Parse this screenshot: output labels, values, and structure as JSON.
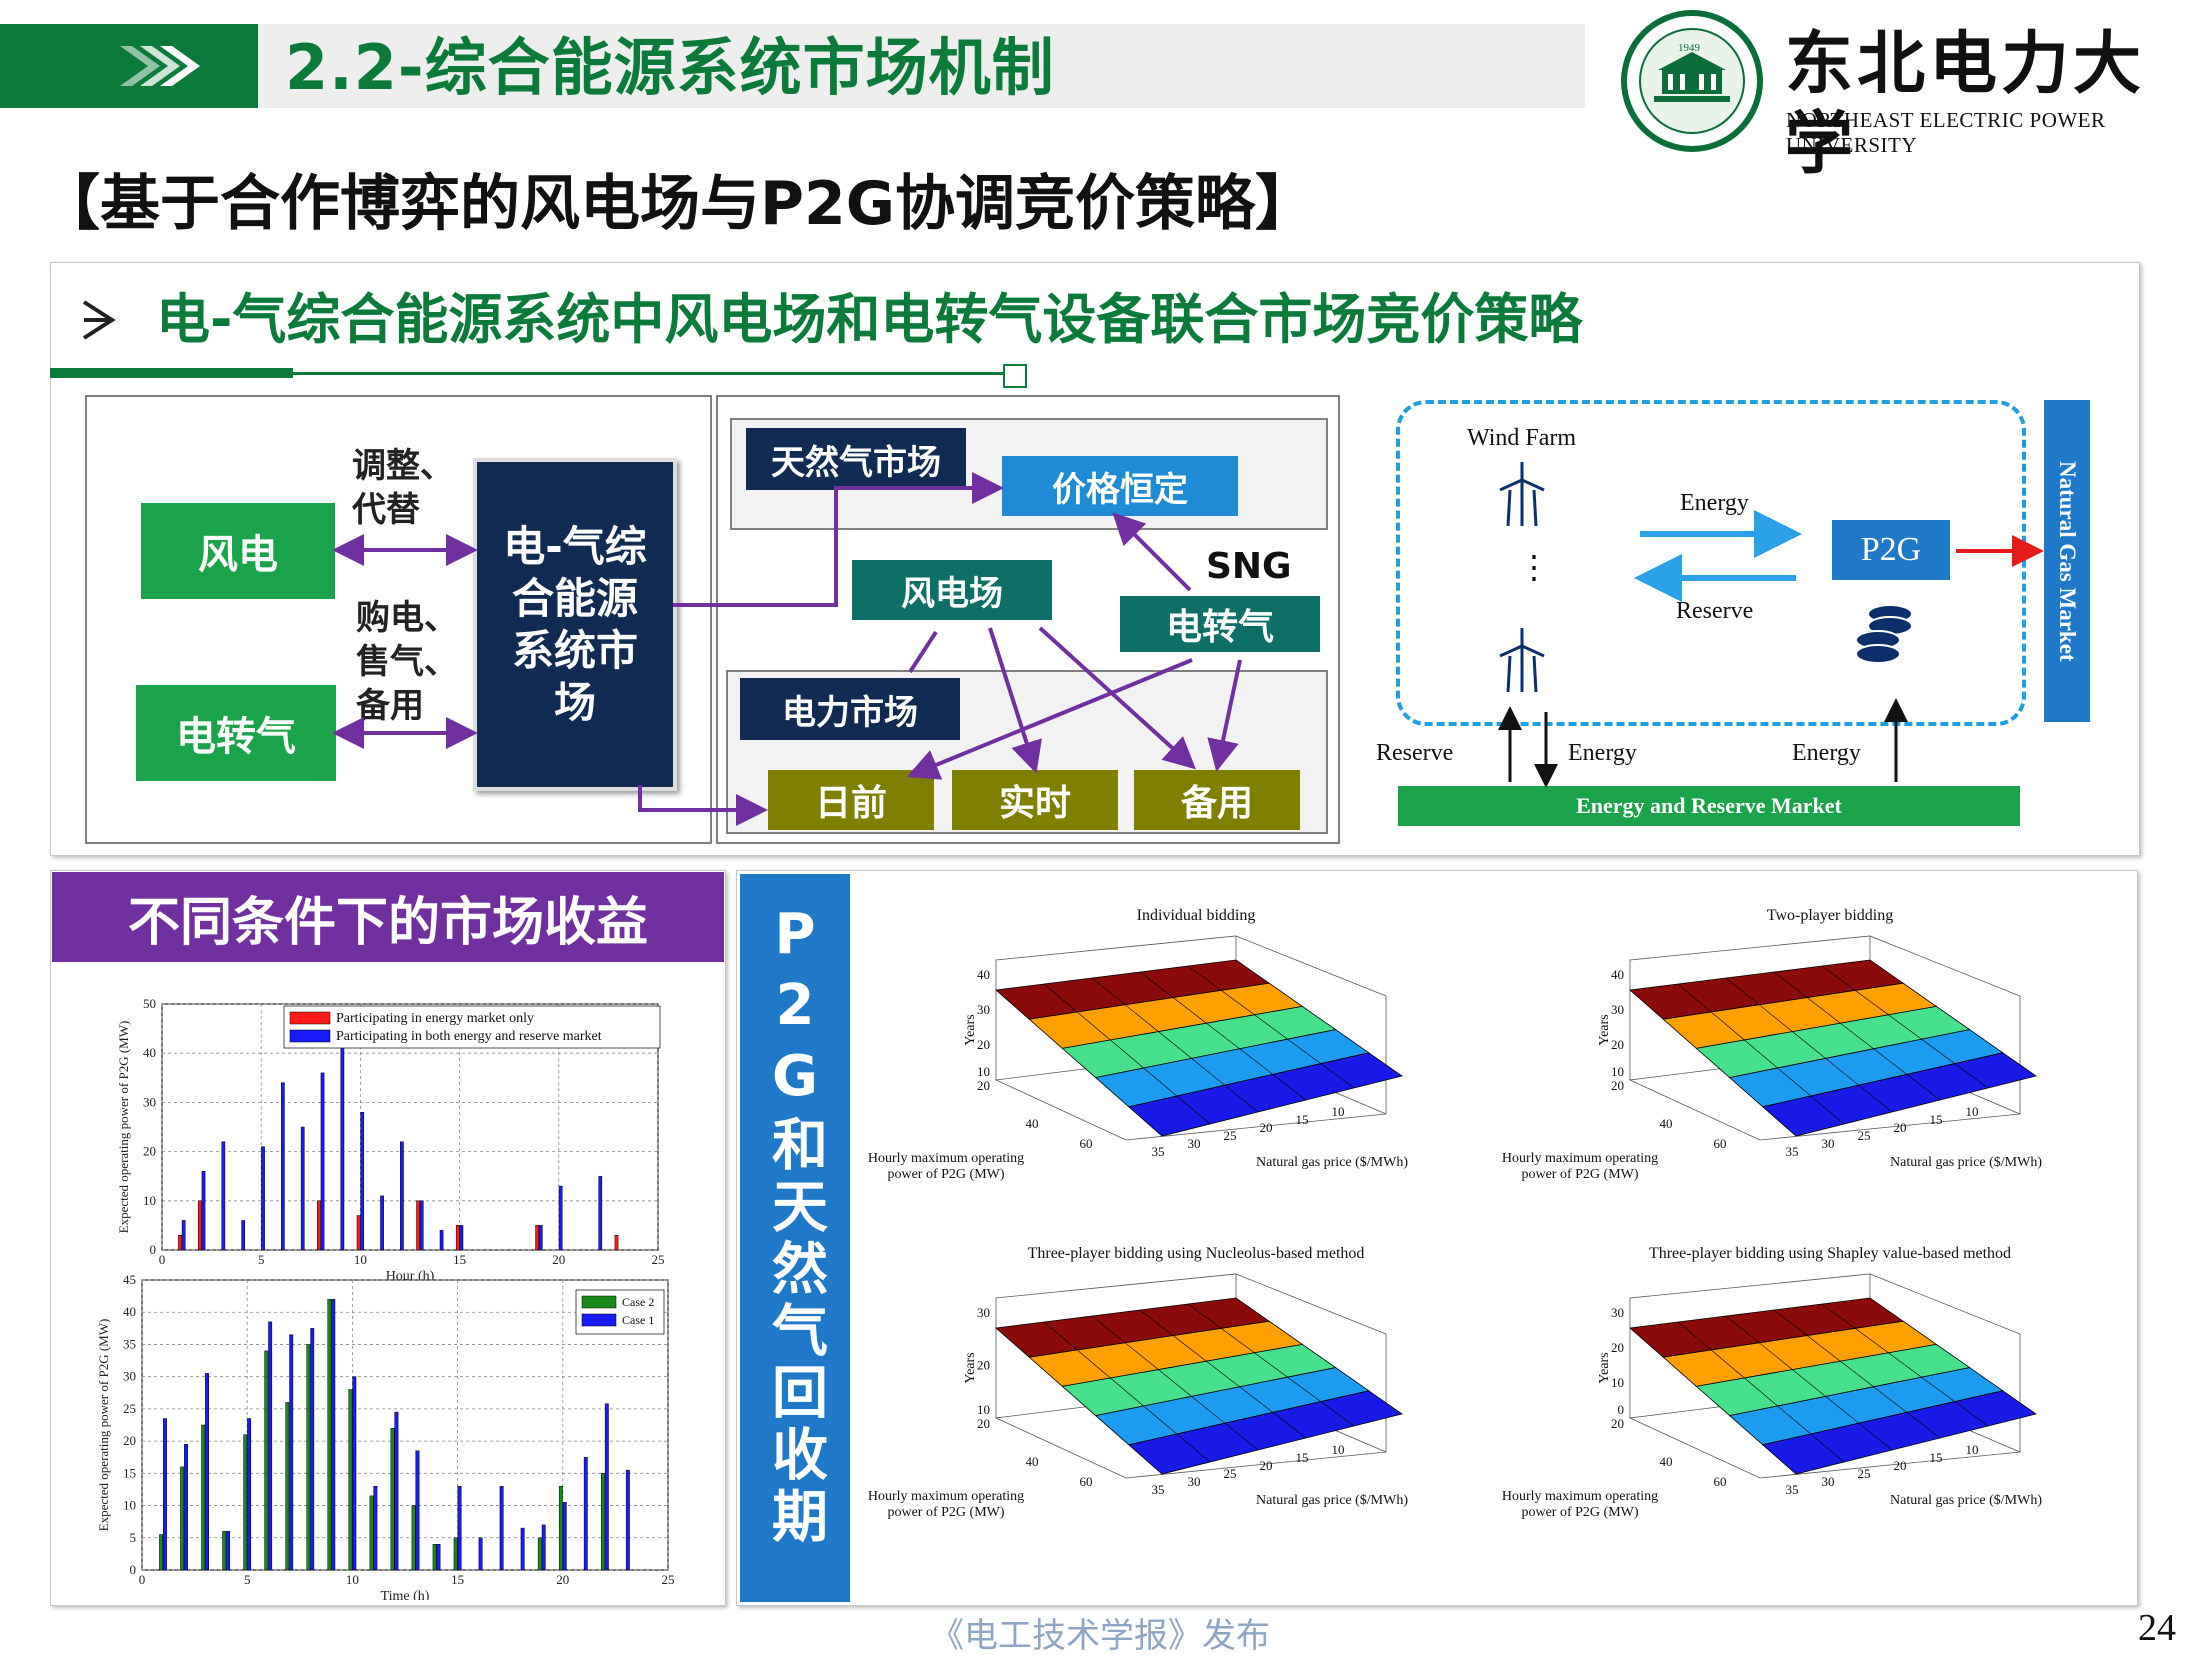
{
  "header": {
    "title": "2.2-综合能源系统市场机制",
    "university_cn": "东北电力大学",
    "university_en": "NORTHEAST ELECTRIC POWER UNIVERSITY",
    "seal_year": "1949",
    "brand_green": "#0a7a3c"
  },
  "subtitle": "【基于合作博弈的风电场与P2G协调竞价策略】",
  "section": {
    "heading": "电-气综合能源系统中风电场和电转气设备联合市场竞价策略",
    "left_diagram": {
      "wind": "风电",
      "p2g": "电转气",
      "label_top": [
        "调整、",
        "代替"
      ],
      "label_bottom": [
        "购电、",
        "售气、",
        "备用"
      ],
      "core": [
        "电-气综",
        "合能源",
        "系统市",
        "场"
      ]
    },
    "mid_diagram": {
      "gas_market": "天然气市场",
      "price_fixed": "价格恒定",
      "wind_farm": "风电场",
      "sng": "SNG",
      "p2g": "电转气",
      "power_market": "电力市场",
      "day_ahead": "日前",
      "real_time": "实时",
      "reserve": "备用"
    },
    "right_diagram": {
      "wind_farm": "Wind Farm",
      "energy": "Energy",
      "reserve": "Reserve",
      "p2g": "P2G",
      "gas_market": "Natural Gas Market",
      "bottom_reserve": "Reserve",
      "bottom_energy1": "Energy",
      "bottom_energy2": "Energy",
      "market": "Energy and Reserve Market",
      "dots": "⋮"
    }
  },
  "revenue_panel": {
    "title": "不同条件下的市场收益"
  },
  "p2g_panel": {
    "title": "P2G和天然气回收期"
  },
  "chart_data": [
    {
      "type": "bar",
      "ylabel": "Expected operating power of P2G (MW)",
      "xlabel": "Hour (h)",
      "xlim": [
        0,
        25
      ],
      "ylim": [
        0,
        50
      ],
      "xticks": [
        "0",
        "5",
        "10",
        "15",
        "20",
        "25"
      ],
      "yticks": [
        "0",
        "10",
        "20",
        "30",
        "40",
        "50"
      ],
      "grid": true,
      "legend_position": "top-right",
      "categories": [
        1,
        2,
        3,
        4,
        5,
        6,
        7,
        8,
        9,
        10,
        11,
        12,
        13,
        14,
        15,
        16,
        17,
        18,
        19,
        20,
        21,
        22,
        23,
        24
      ],
      "series": [
        {
          "name": "Participating in energy market only",
          "color": "#ff1a1a",
          "values": [
            3,
            10,
            0,
            0,
            0,
            0,
            0,
            10,
            0,
            7,
            0,
            0,
            10,
            0,
            5,
            0,
            0,
            0,
            5,
            0,
            0,
            0,
            3,
            0
          ]
        },
        {
          "name": "Participating in both energy and reserve market",
          "color": "#1a1aff",
          "values": [
            6,
            16,
            22,
            6,
            21,
            34,
            25,
            36,
            42,
            28,
            11,
            22,
            10,
            4,
            5,
            0,
            0,
            0,
            5,
            13,
            0,
            15,
            0,
            0
          ]
        }
      ]
    },
    {
      "type": "bar",
      "ylabel": "Expected operating power of P2G (MW)",
      "xlabel": "Time (h)",
      "xlim": [
        0,
        25
      ],
      "ylim": [
        0,
        45
      ],
      "xticks": [
        "0",
        "5",
        "10",
        "15",
        "20",
        "25"
      ],
      "yticks": [
        "0",
        "5",
        "10",
        "15",
        "20",
        "25",
        "30",
        "35",
        "40",
        "45"
      ],
      "grid": true,
      "legend_position": "top-right",
      "categories": [
        1,
        2,
        3,
        4,
        5,
        6,
        7,
        8,
        9,
        10,
        11,
        12,
        13,
        14,
        15,
        16,
        17,
        18,
        19,
        20,
        21,
        22,
        23,
        24
      ],
      "series": [
        {
          "name": "Case 2",
          "color": "#1a8a1a",
          "values": [
            5.5,
            16,
            22.5,
            6,
            21,
            34,
            26,
            35,
            42,
            28,
            11.5,
            22,
            10,
            4,
            5,
            0,
            0,
            0,
            5,
            13,
            0,
            15,
            0,
            0
          ]
        },
        {
          "name": "Case 1",
          "color": "#1a1aff",
          "values": [
            23.5,
            19.5,
            30.5,
            6,
            23.5,
            38.5,
            36.5,
            37.5,
            42,
            30,
            13,
            24.5,
            18.5,
            4,
            13,
            5,
            13,
            6.5,
            7,
            10.5,
            17.5,
            25.8,
            15.5,
            0
          ]
        }
      ]
    },
    {
      "type": "surface",
      "title": "Individual bidding",
      "xlabel": "Natural gas price ($/MWh)",
      "ylabel": "Hourly maximum operating power of P2G (MW)",
      "zlabel": "Years",
      "x_ticks": [
        "35",
        "30",
        "25",
        "20",
        "15",
        "10"
      ],
      "y_ticks": [
        "20",
        "40",
        "60"
      ],
      "z_ticks": [
        "10",
        "20",
        "30",
        "40"
      ],
      "z_bottom_label": "20"
    },
    {
      "type": "surface",
      "title": "Two-player bidding",
      "xlabel": "Natural gas price ($/MWh)",
      "ylabel": "Hourly maximum operating power of P2G (MW)",
      "zlabel": "Years",
      "x_ticks": [
        "35",
        "30",
        "25",
        "20",
        "15",
        "10"
      ],
      "y_ticks": [
        "20",
        "40",
        "60"
      ],
      "z_ticks": [
        "10",
        "20",
        "30",
        "40"
      ],
      "z_bottom_label": "20"
    },
    {
      "type": "surface",
      "title": "Three-player bidding using Nucleolus-based method",
      "xlabel": "Natural gas price ($/MWh)",
      "ylabel": "Hourly maximum operating power of P2G (MW)",
      "zlabel": "Years",
      "x_ticks": [
        "35",
        "30",
        "25",
        "20",
        "15",
        "10"
      ],
      "y_ticks": [
        "20",
        "40",
        "60"
      ],
      "z_ticks": [
        "10",
        "20",
        "30"
      ],
      "z_bottom_label": "20"
    },
    {
      "type": "surface",
      "title": "Three-player bidding using Shapley value-based method",
      "xlabel": "Natural gas price ($/MWh)",
      "ylabel": "Hourly maximum operating power of P2G (MW)",
      "zlabel": "Years",
      "x_ticks": [
        "35",
        "30",
        "25",
        "20",
        "15",
        "10"
      ],
      "y_ticks": [
        "20",
        "40",
        "60"
      ],
      "z_ticks": [
        "0",
        "10",
        "20",
        "30"
      ],
      "z_bottom_label": "20"
    }
  ],
  "footer": {
    "publisher": "《电工技术学报》发布",
    "page_number": "24"
  }
}
